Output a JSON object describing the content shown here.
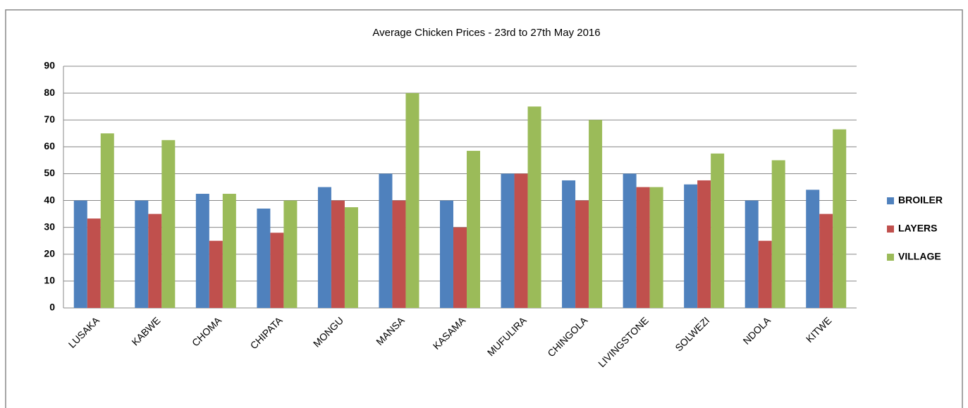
{
  "chart_data": {
    "type": "bar",
    "title": "Average Chicken Prices - 23rd to 27th May 2016",
    "categories": [
      "LUSAKA",
      "KABWE",
      "CHOMA",
      "CHIPATA",
      "MONGU",
      "MANSA",
      "KASAMA",
      "MUFULIRA",
      "CHINGOLA",
      "LIVINGSTONE",
      "SOLWEZI",
      "NDOLA",
      "KITWE"
    ],
    "series": [
      {
        "name": "BROILER",
        "color": "#4f81bd",
        "values": [
          40,
          40,
          42.5,
          37,
          45,
          50,
          40,
          50,
          47.5,
          50,
          46,
          40,
          44
        ]
      },
      {
        "name": "LAYERS",
        "color": "#c0504d",
        "values": [
          33.3,
          35,
          25,
          28,
          40,
          40,
          30,
          50,
          40,
          45,
          47.5,
          25,
          35
        ]
      },
      {
        "name": "VILLAGE",
        "color": "#9bbb59",
        "values": [
          65,
          62.5,
          42.5,
          40,
          37.5,
          80,
          58.5,
          75,
          70,
          45,
          57.5,
          55,
          66.5
        ]
      }
    ],
    "ylim": [
      0,
      90
    ],
    "yticks": [
      0,
      10,
      20,
      30,
      40,
      50,
      60,
      70,
      80,
      90
    ],
    "grid": true,
    "legend": "right"
  }
}
